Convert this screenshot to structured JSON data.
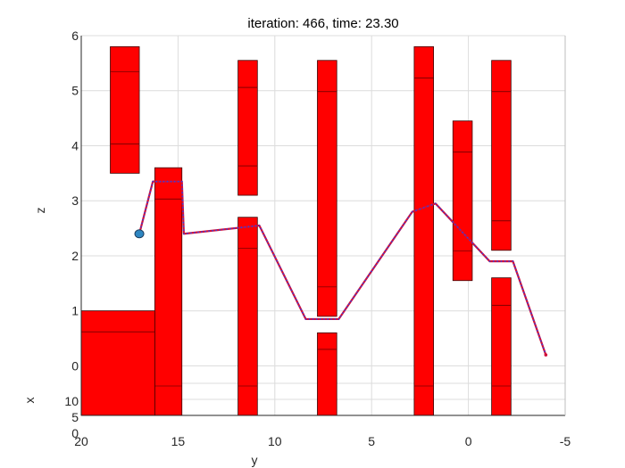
{
  "chart_data": {
    "type": "line",
    "title": "iteration: 466, time: 23.30",
    "xlabel": "y",
    "ylabel": "z",
    "depth_axis_label": "x",
    "x_ticks": [
      "20",
      "15",
      "10",
      "5",
      "0",
      "-5"
    ],
    "z_ticks": [
      "0",
      "1",
      "2",
      "3",
      "4",
      "5",
      "6"
    ],
    "x_depth_ticks": [
      "10",
      "5",
      "0"
    ],
    "xlim": [
      20,
      -5
    ],
    "zlim": [
      -0.9,
      6
    ],
    "grid": true,
    "obstacle_color": "#ff0000",
    "path_color": "#d0103a",
    "path_marker_color": "#3b3bd9",
    "robot_color": "#2e86c1",
    "obstacles": [
      {
        "y": [
          18.5,
          17.0
        ],
        "z": [
          3.5,
          5.8
        ]
      },
      {
        "y": [
          20.0,
          16.2
        ],
        "z": [
          -0.9,
          1.0
        ]
      },
      {
        "y": [
          16.2,
          14.8
        ],
        "z": [
          -0.9,
          3.6
        ]
      },
      {
        "y": [
          11.9,
          10.9
        ],
        "z": [
          3.1,
          5.55
        ]
      },
      {
        "y": [
          11.9,
          10.9
        ],
        "z": [
          -0.9,
          2.7
        ]
      },
      {
        "y": [
          7.8,
          6.8
        ],
        "z": [
          0.9,
          5.55
        ]
      },
      {
        "y": [
          7.8,
          6.8
        ],
        "z": [
          -0.9,
          0.6
        ]
      },
      {
        "y": [
          2.8,
          1.8
        ],
        "z": [
          -0.9,
          5.8
        ]
      },
      {
        "y": [
          0.8,
          -0.2
        ],
        "z": [
          1.55,
          4.45
        ]
      },
      {
        "y": [
          -1.2,
          -2.2
        ],
        "z": [
          2.1,
          5.55
        ]
      },
      {
        "y": [
          -1.2,
          -2.2
        ],
        "z": [
          -0.9,
          1.6
        ]
      }
    ],
    "path": [
      {
        "y": 17.0,
        "z": 2.4
      },
      {
        "y": 16.3,
        "z": 3.35
      },
      {
        "y": 14.8,
        "z": 3.35
      },
      {
        "y": 14.7,
        "z": 2.4
      },
      {
        "y": 10.8,
        "z": 2.55
      },
      {
        "y": 8.4,
        "z": 0.85
      },
      {
        "y": 6.7,
        "z": 0.85
      },
      {
        "y": 2.9,
        "z": 2.8
      },
      {
        "y": 1.7,
        "z": 2.95
      },
      {
        "y": -1.1,
        "z": 1.9
      },
      {
        "y": -2.3,
        "z": 1.9
      },
      {
        "y": -4.0,
        "z": 0.2
      }
    ],
    "robot_position": {
      "y": 17.0,
      "z": 2.4
    }
  }
}
